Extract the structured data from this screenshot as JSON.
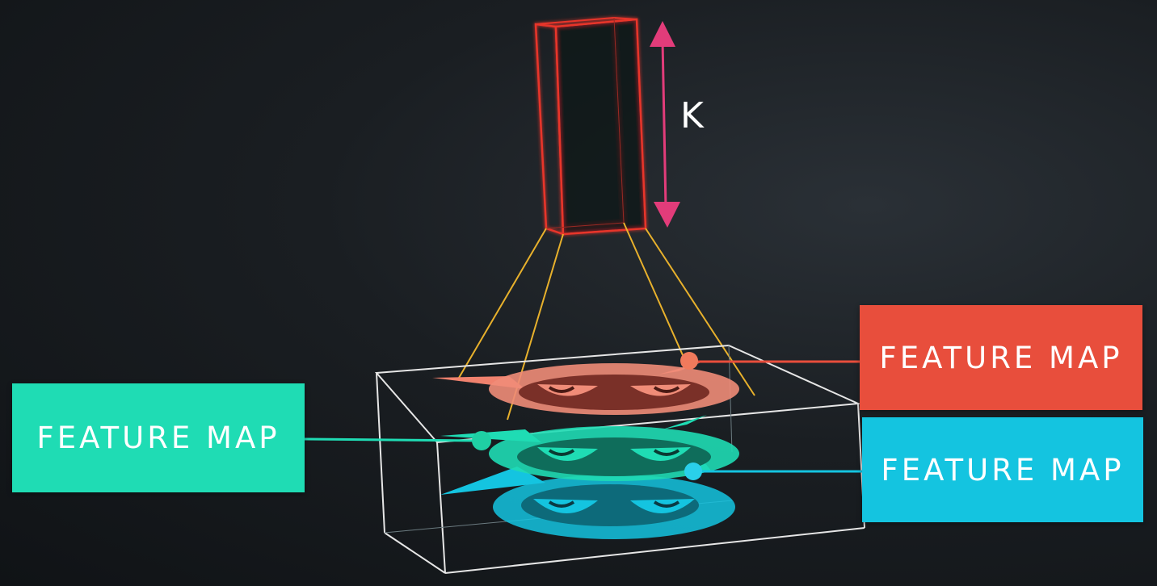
{
  "k_label": "K",
  "labels": {
    "left": "FEATURE MAP",
    "top_right": "FEATURE MAP",
    "bottom_right": "FEATURE MAP"
  },
  "colors": {
    "background": "#15191d",
    "filter_outline": "#e8352c",
    "dimension_arrow": "#e23c7a",
    "projection_lines": "#e8b12c",
    "volume_outline": "#e6e6e6",
    "feature_map_red": "#e84e3c",
    "feature_map_green": "#1fdcb4",
    "feature_map_cyan": "#14c4e0"
  },
  "icons": [
    "cat-face-icon",
    "cat-face-icon",
    "cat-face-icon"
  ]
}
